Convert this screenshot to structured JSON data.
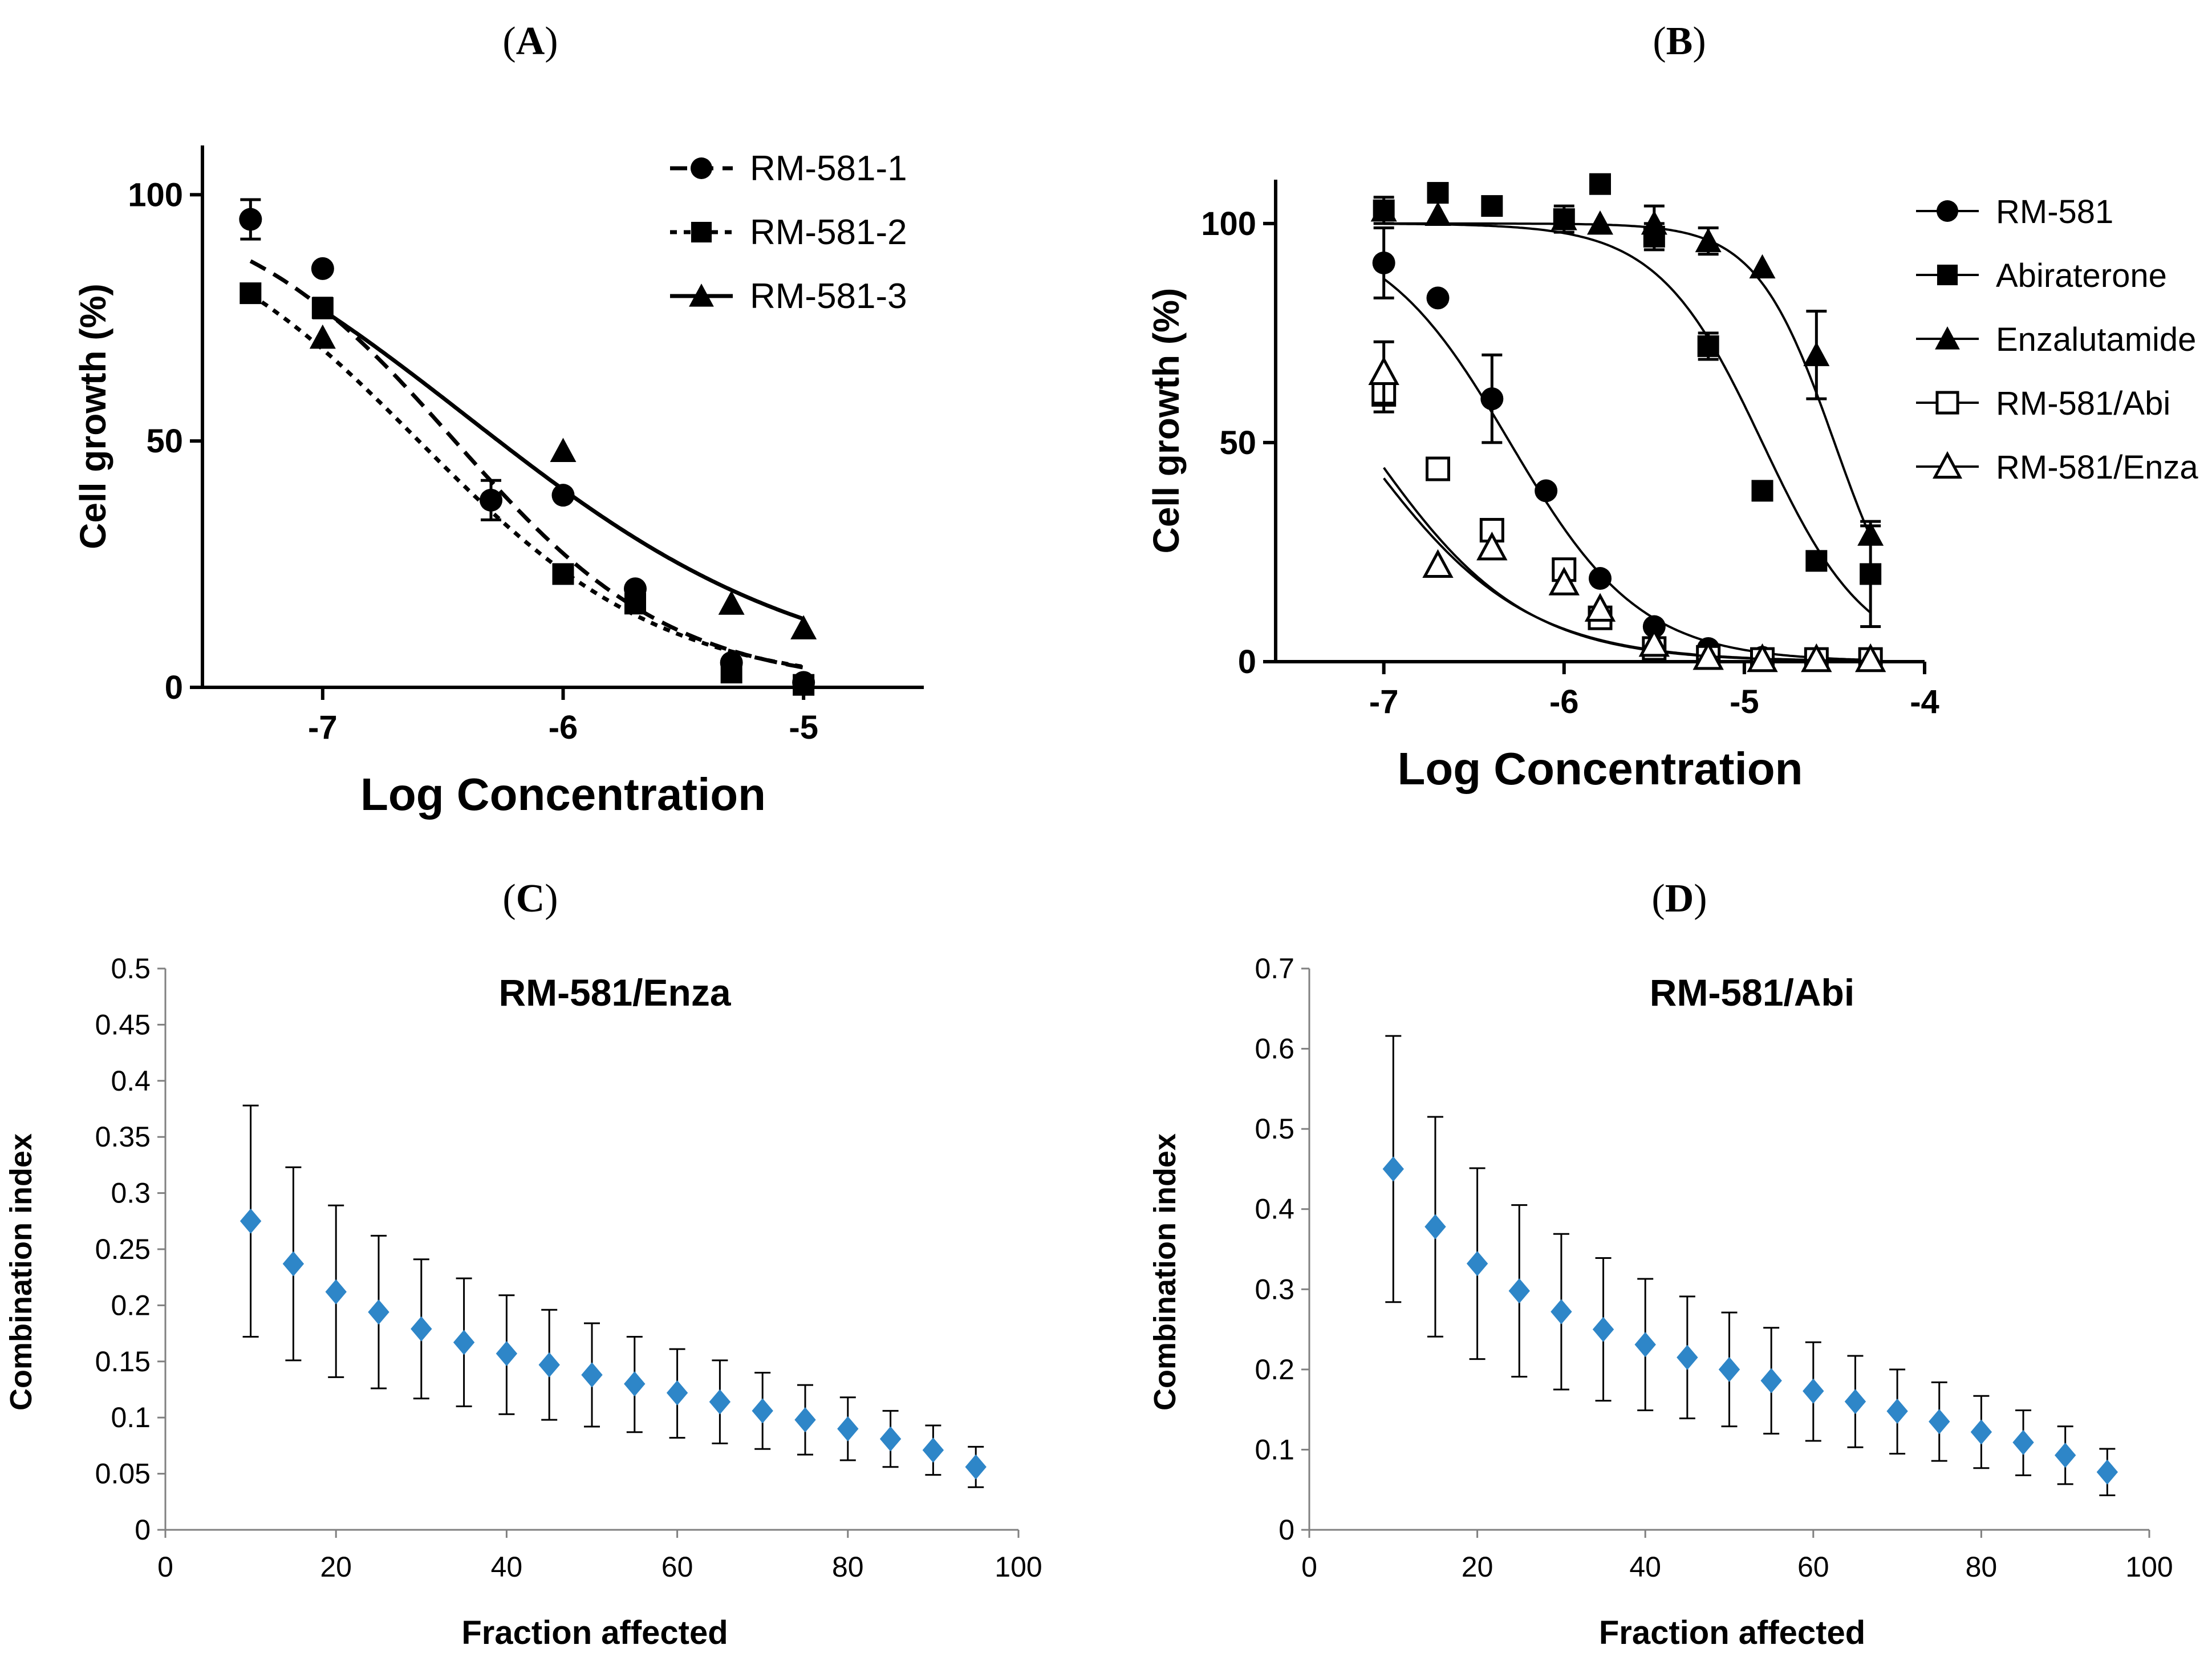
{
  "panels": [
    {
      "id": "A",
      "label": "(A)",
      "chart_data": {
        "type": "scatter",
        "title": "",
        "xlabel": "Log Concentration",
        "ylabel": "Cell growth (%)",
        "xlim": [
          -7.5,
          -4.5
        ],
        "ylim": [
          0,
          110
        ],
        "xticks": [
          -7,
          -6,
          -5
        ],
        "yticks": [
          0,
          50,
          100
        ],
        "xtick_labels": [
          "-7",
          "-6",
          "-5"
        ],
        "ytick_labels": [
          "0",
          "50",
          "100"
        ],
        "legend_position": "top-right",
        "series": [
          {
            "name": "RM-581-1",
            "marker": "circle-filled",
            "line": "dashed",
            "x": [
              -7.3,
              -7.0,
              -6.3,
              -6.0,
              -5.7,
              -5.3,
              -5.0
            ],
            "y": [
              95,
              85,
              38,
              39,
              20,
              5,
              1
            ],
            "yerr": [
              4,
              0,
              4,
              0,
              0,
              0,
              0
            ],
            "fit": {
              "type": "hill",
              "top": 100,
              "bottom": 0,
              "logEC50": -6.45,
              "hill": -0.95
            }
          },
          {
            "name": "RM-581-2",
            "marker": "square-filled",
            "line": "dotted",
            "x": [
              -7.3,
              -7.0,
              -6.0,
              -5.7,
              -5.3,
              -5.0
            ],
            "y": [
              80,
              77,
              23,
              17,
              3,
              0.5
            ],
            "yerr": [
              0,
              2,
              0,
              0,
              0,
              0
            ],
            "fit": {
              "type": "hill",
              "top": 100,
              "bottom": 0,
              "logEC50": -6.6,
              "hill": -0.85
            }
          },
          {
            "name": "RM-581-3",
            "marker": "triangle-filled",
            "line": "solid",
            "x": [
              -7.0,
              -6.0,
              -5.3,
              -5.0
            ],
            "y": [
              71,
              48,
              17,
              12
            ],
            "yerr": [
              0,
              0,
              0,
              0
            ],
            "fit": {
              "type": "hill",
              "top": 110,
              "bottom": 0,
              "logEC50": -6.4,
              "hill": -0.6,
              "xrange": [
                -7.0,
                -5.0
              ]
            }
          }
        ]
      }
    },
    {
      "id": "B",
      "label": "(B)",
      "chart_data": {
        "type": "scatter",
        "title": "",
        "xlabel": "Log Concentration",
        "ylabel": "Cell growth (%)",
        "xlim": [
          -7.6,
          -4.0
        ],
        "ylim": [
          0,
          110
        ],
        "xticks": [
          -7,
          -6,
          -5,
          -4
        ],
        "yticks": [
          0,
          50,
          100
        ],
        "xtick_labels": [
          "-7",
          "-6",
          "-5",
          "-4"
        ],
        "ytick_labels": [
          "0",
          "50",
          "100"
        ],
        "legend_position": "right",
        "series": [
          {
            "name": "RM-581",
            "marker": "circle-filled",
            "x": [
              -7.0,
              -6.7,
              -6.4,
              -6.1,
              -5.8,
              -5.5,
              -5.2,
              -4.9,
              -4.6,
              -4.3
            ],
            "y": [
              91,
              83,
              60,
              39,
              19,
              8,
              3,
              1,
              0.5,
              0.5
            ],
            "yerr": [
              8,
              0,
              10,
              0,
              0,
              0,
              0,
              0,
              0,
              0
            ],
            "fit": {
              "type": "hill",
              "top": 100,
              "bottom": 0,
              "logEC50": -6.3,
              "hill": -1.2,
              "xrange": [
                -7.0,
                -4.3
              ]
            }
          },
          {
            "name": "Abiraterone",
            "marker": "square-filled",
            "x": [
              -7.0,
              -6.7,
              -6.4,
              -6.0,
              -5.8,
              -5.5,
              -5.2,
              -4.9,
              -4.6,
              -4.3
            ],
            "y": [
              103,
              107,
              104,
              101,
              109,
              97,
              72,
              39,
              23,
              20
            ],
            "yerr": [
              3,
              0,
              0,
              3,
              0,
              3,
              3,
              0,
              0,
              12
            ],
            "fit": {
              "type": "hill",
              "top": 100,
              "bottom": 0,
              "logEC50": -4.9,
              "hill": -1.5,
              "xrange": [
                -7.0,
                -4.3
              ]
            }
          },
          {
            "name": "Enzalutamide",
            "marker": "triangle-filled",
            "x": [
              -7.0,
              -6.7,
              -6.0,
              -5.8,
              -5.5,
              -5.2,
              -4.9,
              -4.6,
              -4.3
            ],
            "y": [
              103,
              102,
              101,
              100,
              100,
              96,
              90,
              70,
              29
            ],
            "yerr": [
              0,
              0,
              0,
              0,
              4,
              3,
              0,
              10,
              2
            ],
            "fit": {
              "type": "hill",
              "top": 100,
              "bottom": 0,
              "logEC50": -4.5,
              "hill": -2.0,
              "xrange": [
                -7.0,
                -4.3
              ]
            }
          },
          {
            "name": "RM-581/Abi",
            "marker": "square-open",
            "x": [
              -7.0,
              -6.7,
              -6.4,
              -6.0,
              -5.8,
              -5.5,
              -5.2,
              -4.9,
              -4.6,
              -4.3
            ],
            "y": [
              61,
              44,
              30,
              21,
              10,
              3,
              1,
              0.5,
              0.5,
              0.5
            ],
            "yerr": [
              4,
              0,
              0,
              2,
              0,
              0,
              0,
              0,
              0,
              0
            ],
            "fit": {
              "type": "hill",
              "top": 100,
              "bottom": 0,
              "logEC50": -7.15,
              "hill": -0.95,
              "xrange": [
                -7.0,
                -4.3
              ]
            }
          },
          {
            "name": "RM-581/Enza",
            "marker": "triangle-open",
            "x": [
              -7.0,
              -6.7,
              -6.4,
              -6.0,
              -5.8,
              -5.5,
              -5.2,
              -4.9,
              -4.6,
              -4.3
            ],
            "y": [
              66,
              22,
              26,
              18,
              12,
              4,
              1,
              0.5,
              0.5,
              0.5
            ],
            "yerr": [
              7,
              0,
              0,
              0,
              0,
              0,
              0,
              0,
              0,
              0
            ],
            "fit": {
              "type": "hill",
              "top": 100,
              "bottom": 0,
              "logEC50": -7.1,
              "hill": -1.0,
              "xrange": [
                -7.0,
                -4.3
              ]
            }
          }
        ]
      }
    },
    {
      "id": "C",
      "label": "(C)",
      "chart_data": {
        "type": "scatter",
        "title": "RM-581/Enza",
        "xlabel": "Fraction affected",
        "ylabel": "Combination index",
        "xlim": [
          0,
          100
        ],
        "ylim": [
          0,
          0.5
        ],
        "xticks": [
          0,
          20,
          40,
          60,
          80,
          100
        ],
        "yticks": [
          0,
          0.05,
          0.1,
          0.15,
          0.2,
          0.25,
          0.3,
          0.35,
          0.4,
          0.45,
          0.5
        ],
        "xtick_labels": [
          "0",
          "20",
          "40",
          "60",
          "80",
          "100"
        ],
        "ytick_labels": [
          "0",
          "0.05",
          "0.1",
          "0.15",
          "0.2",
          "0.25",
          "0.3",
          "0.35",
          "0.4",
          "0.45",
          "0.5"
        ],
        "color": "#2E86C8",
        "x": [
          10,
          15,
          20,
          25,
          30,
          35,
          40,
          45,
          50,
          55,
          60,
          65,
          70,
          75,
          80,
          85,
          90,
          95
        ],
        "y": [
          0.275,
          0.237,
          0.212,
          0.194,
          0.179,
          0.167,
          0.157,
          0.147,
          0.138,
          0.13,
          0.122,
          0.114,
          0.106,
          0.098,
          0.09,
          0.081,
          0.071,
          0.056
        ],
        "err_high": [
          0.378,
          0.323,
          0.289,
          0.262,
          0.241,
          0.224,
          0.209,
          0.196,
          0.184,
          0.172,
          0.161,
          0.151,
          0.14,
          0.129,
          0.118,
          0.106,
          0.093,
          0.074
        ],
        "err_low": [
          0.172,
          0.151,
          0.136,
          0.126,
          0.117,
          0.11,
          0.103,
          0.098,
          0.092,
          0.087,
          0.082,
          0.077,
          0.072,
          0.067,
          0.062,
          0.056,
          0.049,
          0.038
        ]
      }
    },
    {
      "id": "D",
      "label": "(D)",
      "chart_data": {
        "type": "scatter",
        "title": "RM-581/Abi",
        "xlabel": "Fraction affected",
        "ylabel": "Combination index",
        "xlim": [
          0,
          100
        ],
        "ylim": [
          0,
          0.7
        ],
        "xticks": [
          0,
          20,
          40,
          60,
          80,
          100
        ],
        "yticks": [
          0,
          0.1,
          0.2,
          0.3,
          0.4,
          0.5,
          0.6,
          0.7
        ],
        "xtick_labels": [
          "0",
          "20",
          "40",
          "60",
          "80",
          "100"
        ],
        "ytick_labels": [
          "0",
          "0.1",
          "0.2",
          "0.3",
          "0.4",
          "0.5",
          "0.6",
          "0.7"
        ],
        "color": "#2E86C8",
        "x": [
          10,
          15,
          20,
          25,
          30,
          35,
          40,
          45,
          50,
          55,
          60,
          65,
          70,
          75,
          80,
          85,
          90,
          95
        ],
        "y": [
          0.45,
          0.378,
          0.332,
          0.298,
          0.272,
          0.25,
          0.231,
          0.215,
          0.2,
          0.186,
          0.173,
          0.16,
          0.148,
          0.135,
          0.122,
          0.109,
          0.093,
          0.072
        ],
        "err_high": [
          0.616,
          0.515,
          0.451,
          0.405,
          0.369,
          0.339,
          0.313,
          0.291,
          0.271,
          0.252,
          0.234,
          0.217,
          0.2,
          0.184,
          0.167,
          0.149,
          0.129,
          0.101
        ],
        "err_low": [
          0.284,
          0.241,
          0.213,
          0.191,
          0.175,
          0.161,
          0.149,
          0.139,
          0.129,
          0.12,
          0.111,
          0.103,
          0.095,
          0.086,
          0.077,
          0.068,
          0.057,
          0.043
        ]
      }
    }
  ]
}
